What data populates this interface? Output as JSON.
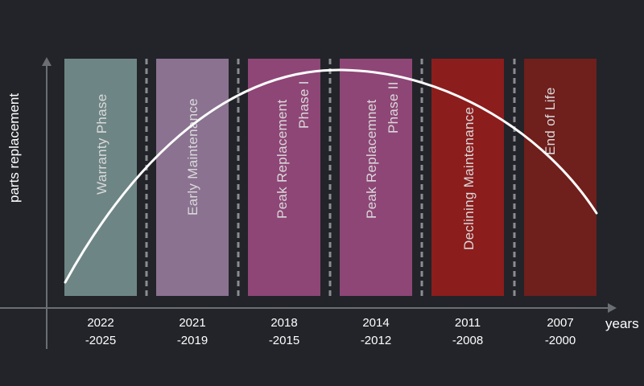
{
  "axes": {
    "y_label": "parts replacement",
    "x_label": "years"
  },
  "phases": [
    {
      "label": "Warranty Phase",
      "years_line1": "2022",
      "years_line2": "-2025",
      "color": "#6e8585"
    },
    {
      "label": "Early Maintenance",
      "years_line1": "2021",
      "years_line2": "-2019",
      "color": "#8a7290"
    },
    {
      "label_line1": "Peak Replacement",
      "label_line2": "Phase I",
      "years_line1": "2018",
      "years_line2": "-2015",
      "color": "#8e4676"
    },
    {
      "label_line1": "Peak Replacemnet",
      "label_line2": "Phase II",
      "years_line1": "2014",
      "years_line2": "-2012",
      "color": "#8e4676"
    },
    {
      "label": "Declining Maintenance",
      "years_line1": "2011",
      "years_line2": "-2008",
      "color": "#8c1d1d"
    },
    {
      "label": "End of Life",
      "years_line1": "2007",
      "years_line2": "-2000",
      "color": "#6f1f1c"
    }
  ],
  "colors": {
    "background": "#222429",
    "axis": "#6b6e73",
    "curve": "#ffffff"
  }
}
